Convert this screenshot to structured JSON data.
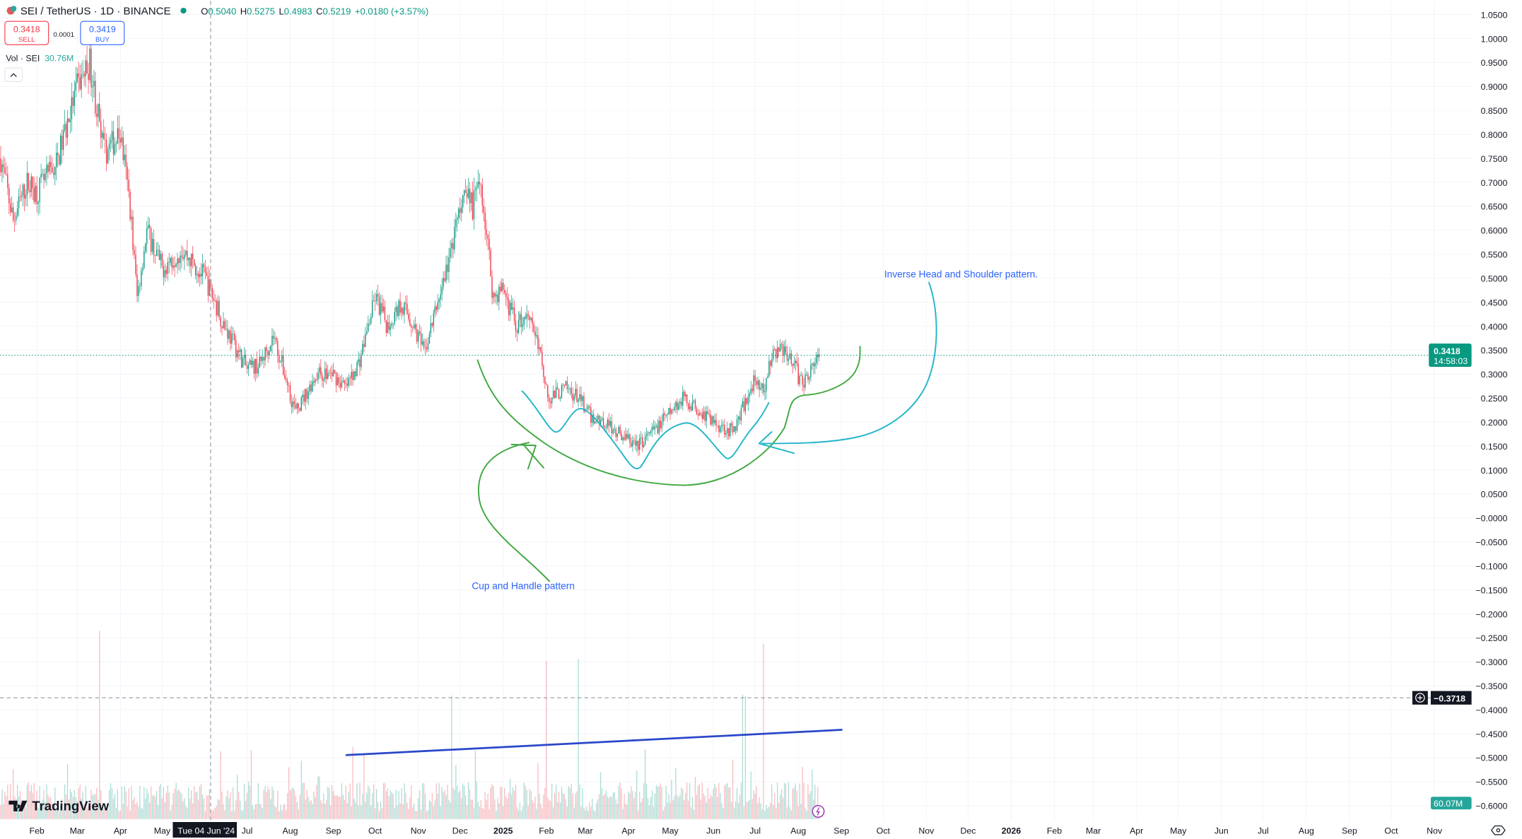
{
  "header": {
    "symbol": "SEI / TetherUS · 1D · BINANCE",
    "ohlc": {
      "o_label": "O",
      "o": "0.5040",
      "h_label": "H",
      "h": "0.5275",
      "l_label": "L",
      "l": "0.4983",
      "c_label": "C",
      "c": "0.5219",
      "change": "+0.0180 (+3.57%)"
    },
    "sell_price": "0.3418",
    "sell_label": "SELL",
    "spread": "0.0001",
    "buy_price": "0.3419",
    "buy_label": "BUY",
    "volume_label": "Vol · SEI",
    "volume_value": "30.76M",
    "collapse_icon": "chevron-up-icon"
  },
  "price_axis": {
    "ticks": [
      "1.0500",
      "1.0000",
      "0.9500",
      "0.9000",
      "0.8500",
      "0.8000",
      "0.7500",
      "0.7000",
      "0.6500",
      "0.6000",
      "0.5500",
      "0.5000",
      "0.4500",
      "0.4000",
      "0.3500",
      "0.3000",
      "0.2500",
      "0.2000",
      "0.1500",
      "0.1000",
      "0.0500",
      "−0.0000",
      "−0.0500",
      "−0.1000",
      "−0.1500",
      "−0.2000",
      "−0.2500",
      "−0.3000",
      "−0.3500",
      "−0.4000",
      "−0.4500",
      "−0.5000",
      "−0.5500",
      "−0.6000"
    ],
    "last_price": "0.3418",
    "countdown": "14:58:03",
    "crosshair_price": "−0.3718",
    "volume_badge": "60.07M",
    "settings_icon": "gear-icon"
  },
  "time_axis": {
    "labels": [
      {
        "t": "Feb",
        "d": "2024-02-01"
      },
      {
        "t": "Mar",
        "d": "2024-03-01"
      },
      {
        "t": "Apr",
        "d": "2024-04-01"
      },
      {
        "t": "May",
        "d": "2024-05-01"
      },
      {
        "t": "Jul",
        "d": "2024-07-01"
      },
      {
        "t": "Aug",
        "d": "2024-08-01"
      },
      {
        "t": "Sep",
        "d": "2024-09-01"
      },
      {
        "t": "Oct",
        "d": "2024-10-01"
      },
      {
        "t": "Nov",
        "d": "2024-11-01"
      },
      {
        "t": "Dec",
        "d": "2024-12-01"
      },
      {
        "t": "2025",
        "d": "2025-01-01",
        "bold": true
      },
      {
        "t": "Feb",
        "d": "2025-02-01"
      },
      {
        "t": "Mar",
        "d": "2025-03-01"
      },
      {
        "t": "Apr",
        "d": "2025-04-01"
      },
      {
        "t": "May",
        "d": "2025-05-01"
      },
      {
        "t": "Jun",
        "d": "2025-06-01"
      },
      {
        "t": "Jul",
        "d": "2025-07-01"
      },
      {
        "t": "Aug",
        "d": "2025-08-01"
      },
      {
        "t": "Sep",
        "d": "2025-09-01"
      },
      {
        "t": "Oct",
        "d": "2025-10-01"
      },
      {
        "t": "Nov",
        "d": "2025-11-01"
      },
      {
        "t": "Dec",
        "d": "2025-12-01"
      },
      {
        "t": "2026",
        "d": "2026-01-01",
        "bold": true
      },
      {
        "t": "Feb",
        "d": "2026-02-01"
      },
      {
        "t": "Mar",
        "d": "2026-03-01"
      },
      {
        "t": "Apr",
        "d": "2026-04-01"
      },
      {
        "t": "May",
        "d": "2026-05-01"
      },
      {
        "t": "Jun",
        "d": "2026-06-01"
      },
      {
        "t": "Jul",
        "d": "2026-07-01"
      },
      {
        "t": "Aug",
        "d": "2026-08-01"
      },
      {
        "t": "Sep",
        "d": "2026-09-01"
      },
      {
        "t": "Oct",
        "d": "2026-10-01"
      },
      {
        "t": "Nov",
        "d": "2026-11-01"
      }
    ],
    "crosshair_date": "Tue 04 Jun '24"
  },
  "annotations": {
    "cup_handle": "Cup and Handle pattern",
    "inverse_hs": "Inverse Head and Shoulder pattern."
  },
  "branding": {
    "logo": "TradingView"
  },
  "colors": {
    "up": "#089981",
    "down": "#f23645",
    "cup": "#3fa83f",
    "ihs": "#22b5c9",
    "trend": "#2b47c9",
    "annotation_text": "#2962ff"
  },
  "chart_data": {
    "type": "candlestick",
    "interval": "1D",
    "ylim": [
      -0.6,
      1.05
    ],
    "price_close_approx": [
      [
        "2024-01-06",
        0.75
      ],
      [
        "2024-01-15",
        0.62
      ],
      [
        "2024-01-25",
        0.7
      ],
      [
        "2024-02-01",
        0.68
      ],
      [
        "2024-02-15",
        0.74
      ],
      [
        "2024-03-01",
        0.9
      ],
      [
        "2024-03-10",
        0.95
      ],
      [
        "2024-03-20",
        0.76
      ],
      [
        "2024-04-01",
        0.8
      ],
      [
        "2024-04-08",
        0.65
      ],
      [
        "2024-04-13",
        0.46
      ],
      [
        "2024-04-20",
        0.6
      ],
      [
        "2024-05-01",
        0.52
      ],
      [
        "2024-05-15",
        0.56
      ],
      [
        "2024-06-01",
        0.5
      ],
      [
        "2024-06-15",
        0.4
      ],
      [
        "2024-07-01",
        0.31
      ],
      [
        "2024-07-10",
        0.32
      ],
      [
        "2024-07-20",
        0.38
      ],
      [
        "2024-08-05",
        0.22
      ],
      [
        "2024-08-20",
        0.3
      ],
      [
        "2024-09-01",
        0.3
      ],
      [
        "2024-09-10",
        0.27
      ],
      [
        "2024-09-20",
        0.33
      ],
      [
        "2024-10-01",
        0.46
      ],
      [
        "2024-10-10",
        0.4
      ],
      [
        "2024-10-20",
        0.45
      ],
      [
        "2024-11-01",
        0.38
      ],
      [
        "2024-11-05",
        0.34
      ],
      [
        "2024-11-15",
        0.45
      ],
      [
        "2024-11-25",
        0.56
      ],
      [
        "2024-12-05",
        0.7
      ],
      [
        "2024-12-10",
        0.65
      ],
      [
        "2024-12-16",
        0.7
      ],
      [
        "2024-12-25",
        0.46
      ],
      [
        "2025-01-01",
        0.48
      ],
      [
        "2025-01-10",
        0.4
      ],
      [
        "2025-01-20",
        0.43
      ],
      [
        "2025-01-27",
        0.35
      ],
      [
        "2025-02-03",
        0.25
      ],
      [
        "2025-02-15",
        0.27
      ],
      [
        "2025-02-25",
        0.25
      ],
      [
        "2025-03-05",
        0.21
      ],
      [
        "2025-03-15",
        0.2
      ],
      [
        "2025-04-07",
        0.15
      ],
      [
        "2025-04-15",
        0.17
      ],
      [
        "2025-04-25",
        0.2
      ],
      [
        "2025-05-10",
        0.25
      ],
      [
        "2025-05-20",
        0.23
      ],
      [
        "2025-06-01",
        0.2
      ],
      [
        "2025-06-15",
        0.18
      ],
      [
        "2025-06-22",
        0.23
      ],
      [
        "2025-07-01",
        0.29
      ],
      [
        "2025-07-07",
        0.26
      ],
      [
        "2025-07-12",
        0.33
      ],
      [
        "2025-07-20",
        0.36
      ],
      [
        "2025-07-28",
        0.33
      ],
      [
        "2025-08-03",
        0.28
      ],
      [
        "2025-08-10",
        0.31
      ],
      [
        "2025-08-16",
        0.3418
      ]
    ],
    "volume_spikes": [
      "2024-03-17",
      "2024-11-25",
      "2025-02-01",
      "2025-02-24",
      "2025-06-22",
      "2025-06-24",
      "2025-07-07"
    ]
  }
}
